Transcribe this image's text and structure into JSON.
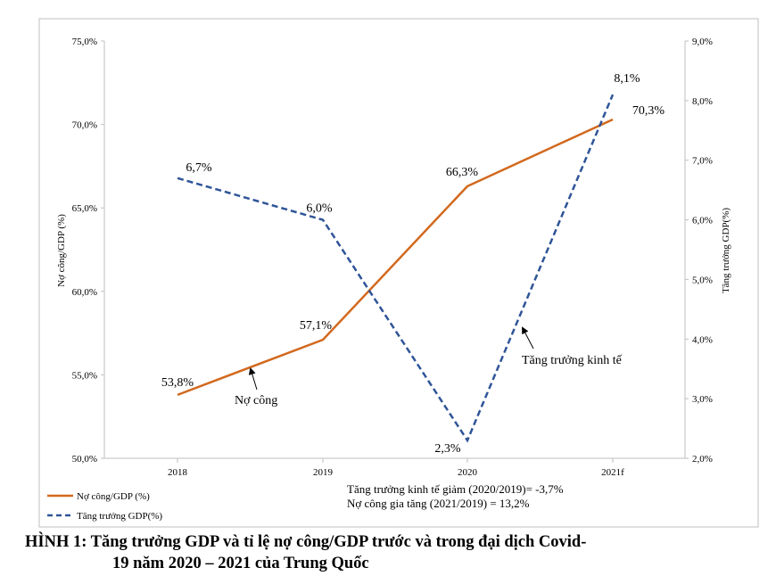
{
  "chart_data": {
    "type": "line",
    "categories": [
      "2018",
      "2019",
      "2020",
      "2021f"
    ],
    "series": [
      {
        "name": "Nợ công/GDP (%)",
        "axis": "left",
        "color": "#D2691E",
        "style": "solid",
        "values": [
          53.8,
          57.1,
          66.3,
          70.3
        ],
        "labels": [
          "53,8%",
          "57,1%",
          "66,3%",
          "70,3%"
        ]
      },
      {
        "name": "Tăng trưởng GDP(%)",
        "axis": "right",
        "color": "#2F5597",
        "style": "dashed",
        "values": [
          6.7,
          6.0,
          2.3,
          8.1
        ],
        "labels": [
          "6,7%",
          "6,0%",
          "2,3%",
          "8,1%"
        ]
      }
    ],
    "ylabel_left": "Nợ công/GDP (%)",
    "ylabel_right": "Tăng trưởng GDP(%)",
    "ylim_left": [
      50,
      75
    ],
    "yticks_left": [
      "50,0%",
      "55,0%",
      "60,0%",
      "65,0%",
      "70,0%",
      "75,0%"
    ],
    "ylim_right": [
      2,
      9
    ],
    "yticks_right": [
      "2,0%",
      "3,0%",
      "4,0%",
      "5,0%",
      "6,0%",
      "7,0%",
      "8,0%",
      "9,0%"
    ],
    "grid": false,
    "legend_position": "bottom-left",
    "annotations": [
      "Nợ công",
      "Tăng trưởng kinh tế"
    ],
    "notes": [
      "Tăng trưởng kinh tế giảm (2020/2019)= -3,7%",
      "Nợ công gia tăng (2021/2019) = 13,2%"
    ]
  },
  "caption": {
    "line1": "HÌNH 1: Tăng trưởng GDP và tỉ lệ nợ công/GDP trước và trong đại dịch Covid-",
    "line2": "19 năm 2020 – 2021 của Trung Quốc"
  }
}
